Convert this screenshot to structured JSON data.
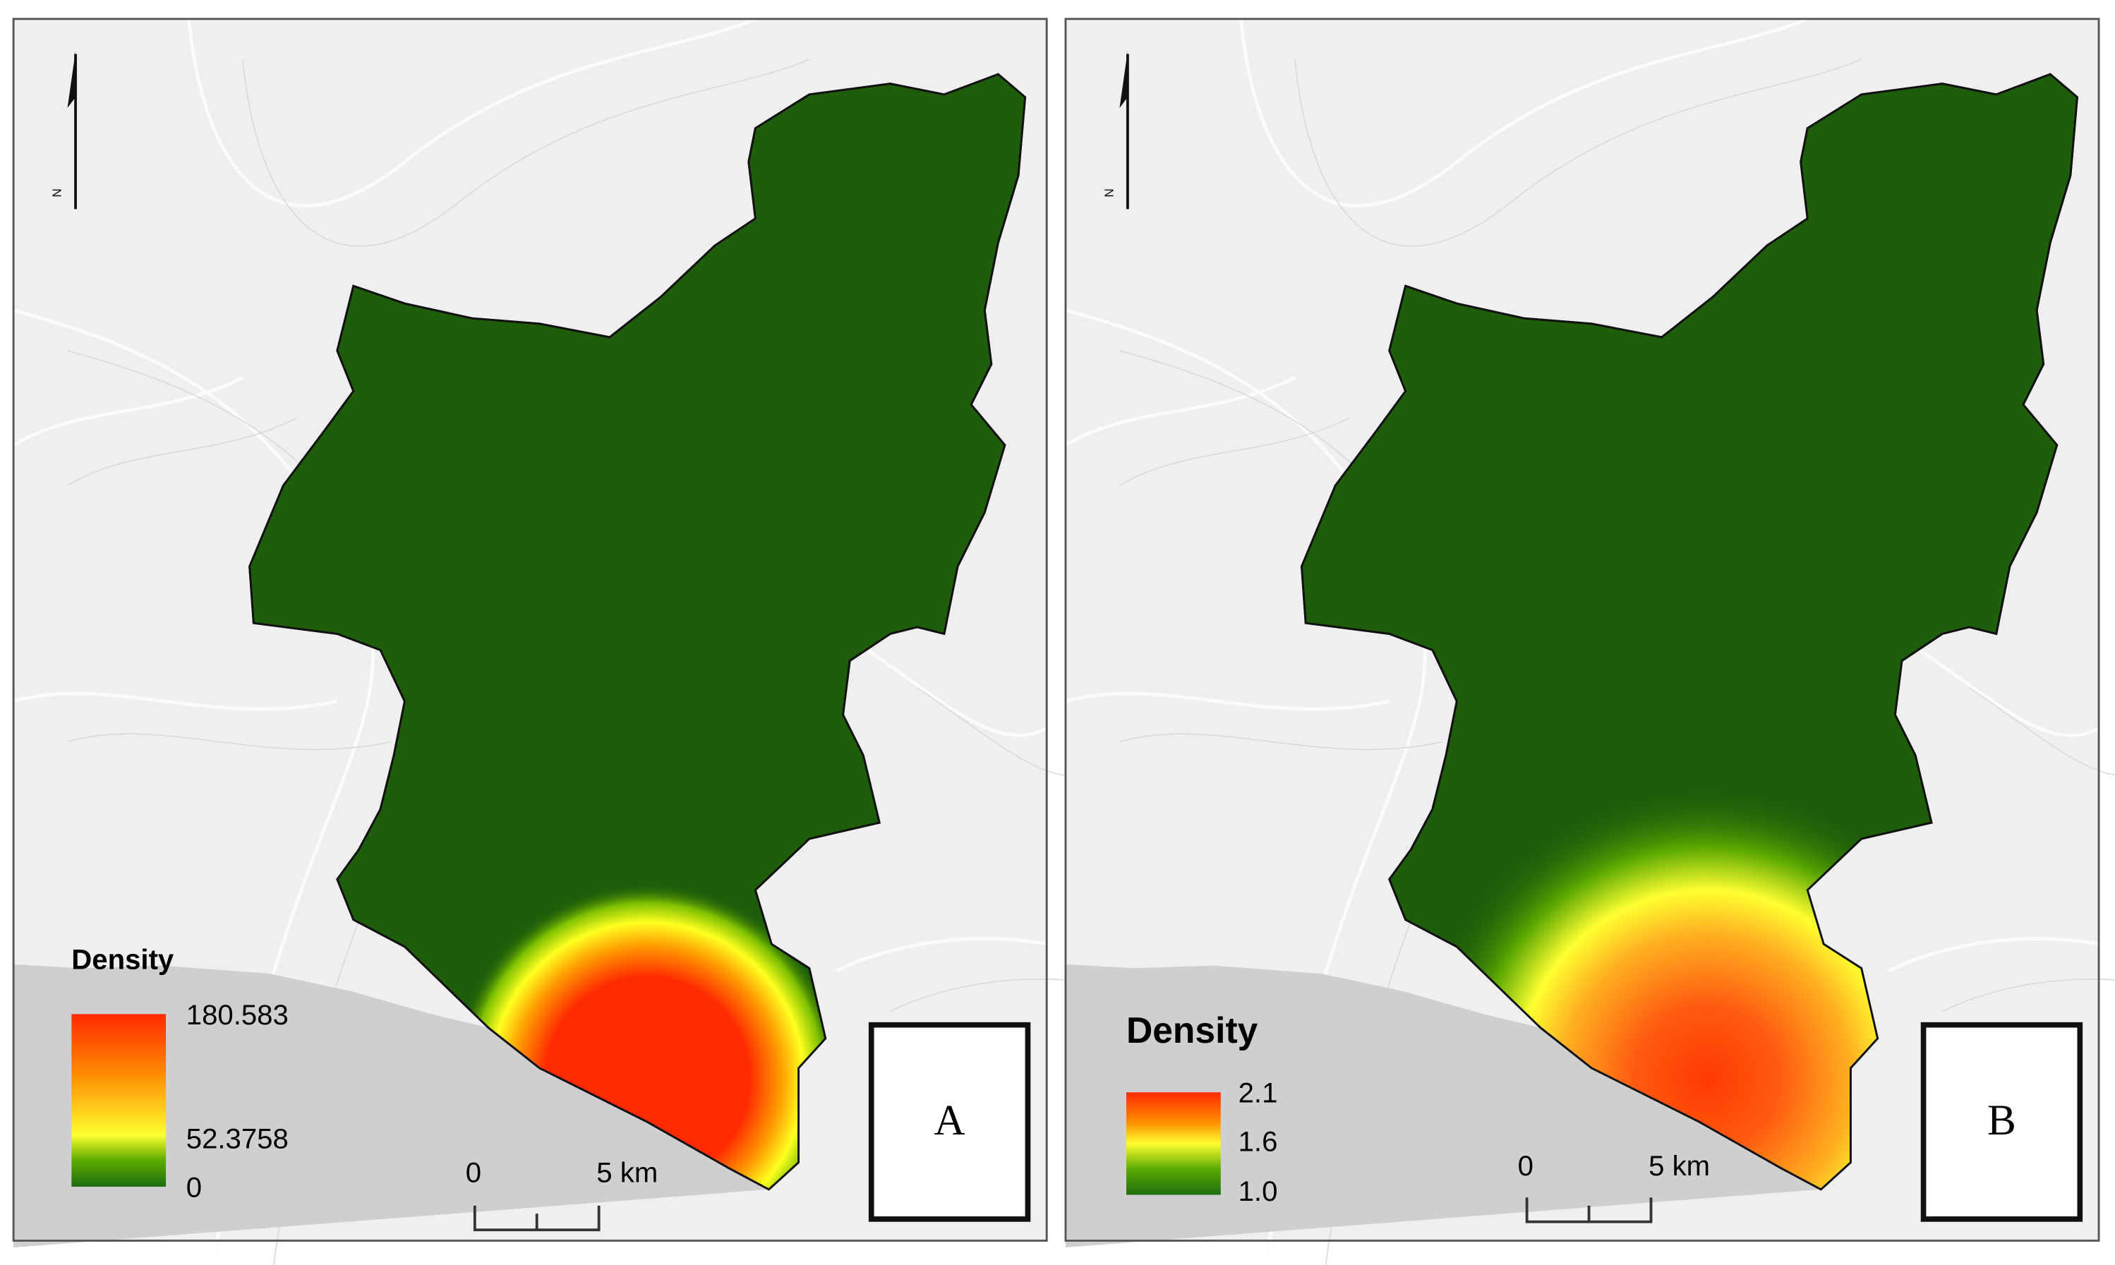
{
  "panels": [
    {
      "label": "A",
      "north": "N",
      "legend": {
        "title": "Density",
        "labels": [
          "180.583",
          "52.3758",
          "0"
        ]
      },
      "scale_bar": {
        "labels": [
          "0",
          "5 km"
        ]
      }
    },
    {
      "label": "B",
      "north": "N",
      "legend": {
        "title": "Density",
        "labels": [
          "2.1",
          "1.6",
          "1.0"
        ]
      },
      "scale_bar": {
        "labels": [
          "0",
          "5 km"
        ]
      }
    }
  ]
}
